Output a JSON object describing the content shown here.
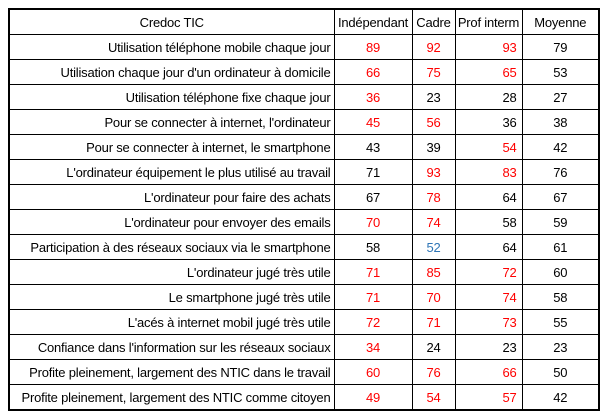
{
  "colors": {
    "red": "#ff0000",
    "blue": "#2e75b6",
    "black": "#000000",
    "border": "#000000"
  },
  "chart_data": {
    "type": "table",
    "title": "Credoc TIC",
    "columns": [
      "Indépendant",
      "Cadre",
      "Prof interm",
      "Moyenne"
    ],
    "rows": [
      {
        "label": "Utilisation téléphone mobile chaque jour",
        "values": [
          89,
          92,
          93,
          79
        ],
        "value_colors": [
          "red",
          "red",
          "red",
          "black"
        ]
      },
      {
        "label": "Utilisation chaque jour d'un ordinateur à domicile",
        "values": [
          66,
          75,
          65,
          53
        ],
        "value_colors": [
          "red",
          "red",
          "red",
          "black"
        ]
      },
      {
        "label": "Utilisation téléphone fixe chaque jour",
        "values": [
          36,
          23,
          28,
          27
        ],
        "value_colors": [
          "red",
          "black",
          "black",
          "black"
        ]
      },
      {
        "label": "Pour se connecter à internet, l'ordinateur",
        "values": [
          45,
          56,
          36,
          38
        ],
        "value_colors": [
          "red",
          "red",
          "black",
          "black"
        ]
      },
      {
        "label": "Pour se connecter à internet, le smartphone",
        "values": [
          43,
          39,
          54,
          42
        ],
        "value_colors": [
          "black",
          "black",
          "red",
          "black"
        ]
      },
      {
        "label": "L'ordinateur équipement le plus utilisé au travail",
        "values": [
          71,
          93,
          83,
          76
        ],
        "value_colors": [
          "black",
          "red",
          "red",
          "black"
        ]
      },
      {
        "label": "L'ordinateur pour faire des achats",
        "values": [
          67,
          78,
          64,
          67
        ],
        "value_colors": [
          "black",
          "red",
          "black",
          "black"
        ]
      },
      {
        "label": "L'ordinateur pour envoyer des emails",
        "values": [
          70,
          74,
          58,
          59
        ],
        "value_colors": [
          "red",
          "red",
          "black",
          "black"
        ]
      },
      {
        "label": "Participation à des réseaux sociaux via le smartphone",
        "values": [
          58,
          52,
          64,
          61
        ],
        "value_colors": [
          "black",
          "blue",
          "black",
          "black"
        ]
      },
      {
        "label": "L'ordinateur jugé très utile",
        "values": [
          71,
          85,
          72,
          60
        ],
        "value_colors": [
          "red",
          "red",
          "red",
          "black"
        ]
      },
      {
        "label": "Le smartphone jugé très utile",
        "values": [
          71,
          70,
          74,
          58
        ],
        "value_colors": [
          "red",
          "red",
          "red",
          "black"
        ]
      },
      {
        "label": "L'acés à internet mobil jugé très utile",
        "values": [
          72,
          71,
          73,
          55
        ],
        "value_colors": [
          "red",
          "red",
          "red",
          "black"
        ]
      },
      {
        "label": "Confiance dans l'information sur les réseaux sociaux",
        "values": [
          34,
          24,
          23,
          23
        ],
        "value_colors": [
          "red",
          "black",
          "black",
          "black"
        ]
      },
      {
        "label": "Profite pleinement, largement des NTIC dans le travail",
        "values": [
          60,
          76,
          66,
          50
        ],
        "value_colors": [
          "red",
          "red",
          "red",
          "black"
        ]
      },
      {
        "label": "Profite pleinement, largement des NTIC comme citoyen",
        "values": [
          49,
          54,
          57,
          42
        ],
        "value_colors": [
          "red",
          "red",
          "red",
          "black"
        ]
      }
    ]
  }
}
